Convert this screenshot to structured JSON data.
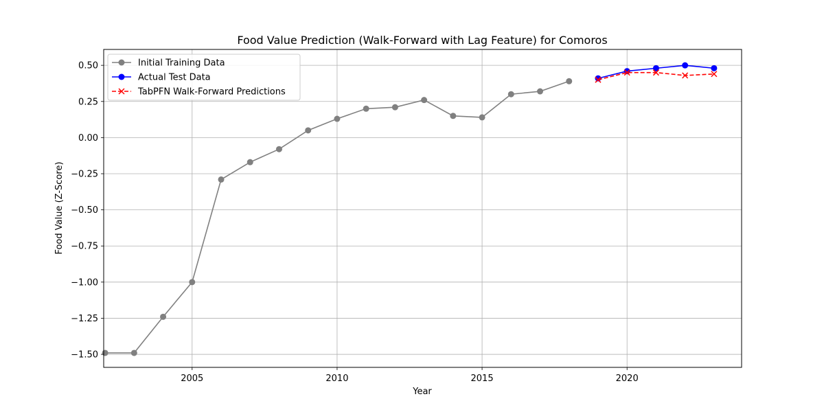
{
  "chart_data": {
    "type": "line",
    "title": "Food Value Prediction (Walk-Forward with Lag Feature) for Comoros",
    "xlabel": "Year",
    "ylabel": "Food Value (Z-Score)",
    "xlim": [
      2001.95,
      2023.95
    ],
    "ylim": [
      -1.59,
      0.61
    ],
    "x_ticks": [
      2005,
      2010,
      2015,
      2020
    ],
    "y_ticks": [
      0.5,
      0.25,
      0.0,
      -0.25,
      -0.5,
      -0.75,
      -1.0,
      -1.25,
      -1.5
    ],
    "y_tick_labels": [
      "0.50",
      "0.25",
      "0.00",
      "−0.25",
      "−0.50",
      "−0.75",
      "−1.00",
      "−1.25",
      "−1.50"
    ],
    "grid": true,
    "legend_position": "top-left",
    "series": [
      {
        "name": "Initial Training Data",
        "color": "#808080",
        "marker": "circle",
        "linestyle": "solid",
        "x": [
          2002,
          2003,
          2004,
          2005,
          2006,
          2007,
          2008,
          2009,
          2010,
          2011,
          2012,
          2013,
          2014,
          2015,
          2016,
          2017,
          2018
        ],
        "y": [
          -1.49,
          -1.49,
          -1.24,
          -1.0,
          -0.29,
          -0.17,
          -0.08,
          0.05,
          0.13,
          0.2,
          0.21,
          0.26,
          0.15,
          0.14,
          0.3,
          0.32,
          0.39
        ]
      },
      {
        "name": "Actual Test Data",
        "color": "#0000ff",
        "marker": "circle",
        "linestyle": "solid",
        "x": [
          2019,
          2020,
          2021,
          2022,
          2023
        ],
        "y": [
          0.41,
          0.46,
          0.48,
          0.5,
          0.48
        ]
      },
      {
        "name": "TabPFN Walk-Forward Predictions",
        "color": "#ff0000",
        "marker": "x",
        "linestyle": "dashed",
        "x": [
          2019,
          2020,
          2021,
          2022,
          2023
        ],
        "y": [
          0.4,
          0.45,
          0.45,
          0.43,
          0.44
        ]
      }
    ]
  }
}
